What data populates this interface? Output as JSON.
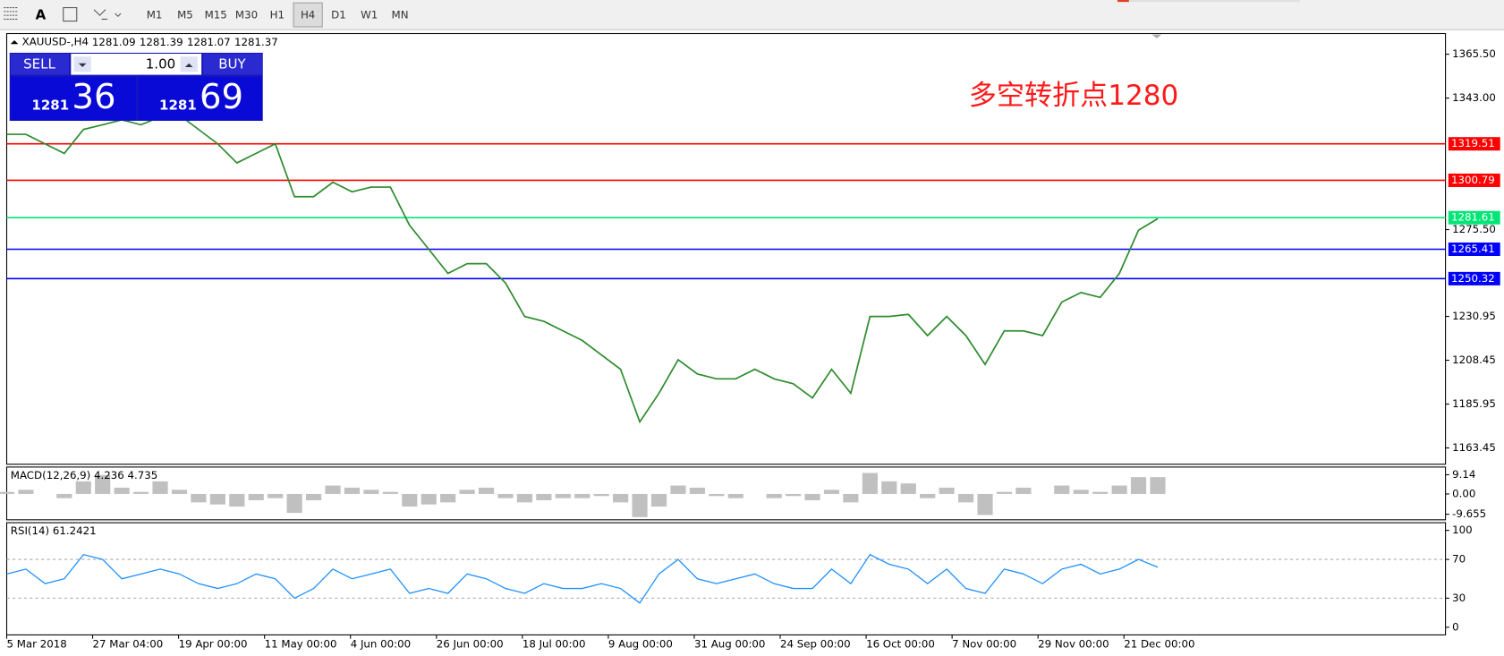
{
  "toolbar": {
    "timeframes": [
      "M1",
      "M5",
      "M15",
      "M30",
      "H1",
      "H4",
      "D1",
      "W1",
      "MN"
    ],
    "active": "H4"
  },
  "header": {
    "symbol": "XAUUSD-,H4",
    "ohlc": [
      1281.09,
      1281.39,
      1281.07,
      1281.37
    ]
  },
  "trade_panel": {
    "sell": "SELL",
    "buy": "BUY",
    "lot": "1.00",
    "bid_prefix": "1281",
    "bid_big": "36",
    "ask_prefix": "1281",
    "ask_big": "69"
  },
  "chart_data": [
    {
      "type": "line",
      "annotation": "多空转折点1280",
      "color": "#2e8b2e",
      "x_labels": [
        "5 Mar 2018",
        "27 Mar 04:00",
        "19 Apr 00:00",
        "11 May 00:00",
        "4 Jun 00:00",
        "26 Jun 00:00",
        "18 Jul 00:00",
        "9 Aug 00:00",
        "31 Aug 00:00",
        "24 Sep 00:00",
        "16 Oct 00:00",
        "7 Nov 00:00",
        "29 Nov 00:00",
        "21 Dec 00:00"
      ],
      "values": [
        1324.4,
        1324.4,
        1319.5,
        1314.6,
        1326.9,
        1329.3,
        1331.8,
        1329.3,
        1333.3,
        1334.3,
        1326.9,
        1319.5,
        1309.7,
        1314.6,
        1319.5,
        1292.4,
        1292.4,
        1299.8,
        1294.9,
        1297.3,
        1297.3,
        1277.7,
        1265.4,
        1253.0,
        1258.0,
        1258.0,
        1248.1,
        1230.9,
        1228.4,
        1223.5,
        1218.6,
        1211.2,
        1203.8,
        1176.8,
        1191.5,
        1208.7,
        1201.4,
        1198.9,
        1198.9,
        1203.8,
        1198.9,
        1196.4,
        1189.1,
        1203.8,
        1191.5,
        1230.9,
        1230.9,
        1232.0,
        1221.1,
        1230.9,
        1221.1,
        1206.3,
        1223.5,
        1223.5,
        1221.1,
        1238.3,
        1243.2,
        1240.7,
        1253.0,
        1275.2,
        1281.1
      ],
      "ylim": [
        1155.1,
        1376.1
      ],
      "yticks": [
        {
          "value": 1365.5,
          "label": "1365.50"
        },
        {
          "value": 1343,
          "label": "1343.00"
        },
        {
          "value": 1275.5,
          "label": "1275.50"
        },
        1230.95,
        1208.45,
        1185.95,
        1163.45
      ],
      "levels": [
        {
          "value": 1319.51,
          "color": "#ff0000"
        },
        {
          "value": 1300.79,
          "color": "#ff0000"
        },
        {
          "value": 1281.61,
          "color": "#00e676"
        },
        {
          "value": 1265.41,
          "color": "#0000ff"
        },
        {
          "value": 1250.32,
          "color": "#0000ff"
        }
      ]
    },
    {
      "type": "bar",
      "label": "MACD(12,26,9) 4.236 4.735",
      "color": "#c0c0c0",
      "values": [
        1,
        2,
        0,
        -2,
        6,
        9,
        3,
        1,
        6,
        2,
        -4,
        -5,
        -6,
        -3,
        -2,
        -9,
        -3,
        4,
        3,
        2,
        1,
        -6,
        -5,
        -4,
        2,
        3,
        -2,
        -4,
        -3,
        -2,
        -2,
        -1,
        -4,
        -11,
        -6,
        4,
        3,
        -1,
        -2,
        0,
        -2,
        -1,
        -3,
        2,
        -4,
        10,
        6,
        5,
        -2,
        3,
        -4,
        -10,
        1,
        3,
        0,
        4,
        2,
        1,
        4,
        8,
        8
      ],
      "ylim": [
        -12.3,
        12.8
      ],
      "yticks": [
        9.14,
        {
          "value": 0,
          "label": "0.00"
        },
        -9.655
      ]
    },
    {
      "type": "line",
      "label": "RSI(14) 61.2421",
      "color": "#1e90ff",
      "values": [
        55,
        60,
        45,
        50,
        75,
        70,
        50,
        55,
        60,
        55,
        45,
        40,
        45,
        55,
        50,
        30,
        40,
        60,
        50,
        55,
        60,
        35,
        40,
        35,
        55,
        50,
        40,
        35,
        45,
        40,
        40,
        45,
        40,
        25,
        55,
        70,
        50,
        45,
        50,
        55,
        45,
        40,
        40,
        60,
        45,
        75,
        65,
        60,
        45,
        60,
        40,
        35,
        60,
        55,
        45,
        60,
        65,
        55,
        60,
        70,
        62
      ],
      "ylim": [
        -7.9,
        107.9
      ],
      "yticks": [
        100,
        70,
        30,
        0
      ],
      "levels": [
        70,
        30
      ]
    }
  ]
}
